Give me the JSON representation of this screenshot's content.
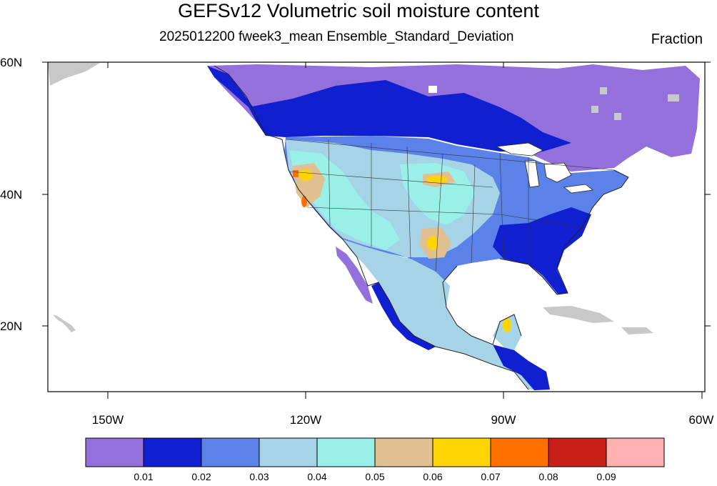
{
  "title": "GEFSv12 Volumetric soil moisture content",
  "subtitle": "2025012200 fweek3_mean Ensemble_Standard_Deviation",
  "units": "Fraction",
  "map": {
    "lon_range": [
      -160,
      -60
    ],
    "lat_range": [
      10,
      60
    ],
    "lon_labels": [
      {
        "lon": -150,
        "label": "150W"
      },
      {
        "lon": -120,
        "label": "120W"
      },
      {
        "lon": -90,
        "label": "90W"
      },
      {
        "lon": -60,
        "label": "60W"
      }
    ],
    "lat_labels": [
      {
        "lat": 60,
        "label": "60N"
      },
      {
        "lat": 40,
        "label": "40N"
      },
      {
        "lat": 20,
        "label": "20N"
      }
    ],
    "colors": {
      "land_missing": "#c8c8c8",
      "coast": "#222222"
    }
  },
  "colorbar": {
    "colors": [
      "#9370db",
      "#1020d0",
      "#5a82e8",
      "#a6d4e6",
      "#98f0e8",
      "#e0c090",
      "#ffd400",
      "#ff7000",
      "#c82018",
      "#ffb0b0"
    ],
    "labels": [
      "0.01",
      "0.02",
      "0.03",
      "0.04",
      "0.05",
      "0.06",
      "0.07",
      "0.08",
      "0.09"
    ]
  }
}
